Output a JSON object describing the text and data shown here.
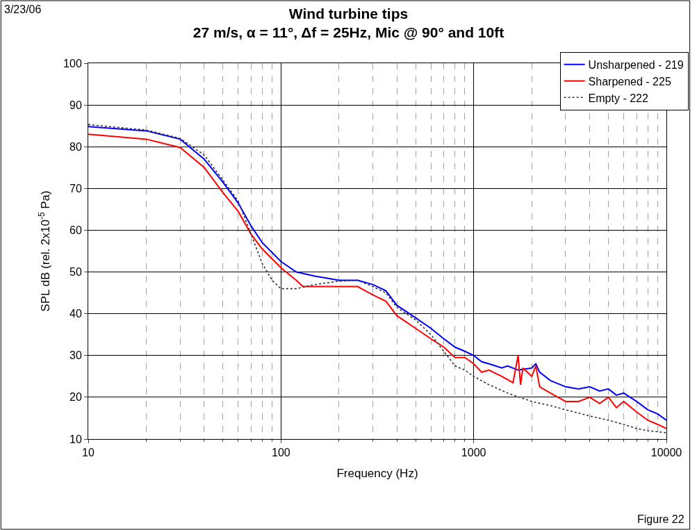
{
  "chart_data": {
    "type": "line",
    "title": "Wind turbine tips",
    "subtitle": "27 m/s, α = 11°, Δf = 25Hz, Mic @ 90° and 10ft",
    "xlabel": "Frequency (Hz)",
    "ylabel": "SPL dB (rel. 2x10$^{-5}$ Pa)",
    "log": "x",
    "xlim": [
      10,
      10000
    ],
    "xticks": [
      10,
      {
        "value": 20,
        "label": null
      },
      {
        "value": 30,
        "label": null
      },
      {
        "value": 40,
        "label": null
      },
      {
        "value": 50,
        "label": null
      },
      {
        "value": 60,
        "label": null
      },
      {
        "value": 70,
        "label": null
      },
      {
        "value": 80,
        "label": null
      },
      {
        "value": 90,
        "label": null
      },
      100,
      {
        "value": 200,
        "label": null
      },
      {
        "value": 300,
        "label": null
      },
      {
        "value": 400,
        "label": null
      },
      {
        "value": 500,
        "label": null
      },
      {
        "value": 600,
        "label": null
      },
      {
        "value": 700,
        "label": null
      },
      {
        "value": 800,
        "label": null
      },
      {
        "value": 900,
        "label": null
      },
      1000,
      {
        "value": 2000,
        "label": null
      },
      {
        "value": 3000,
        "label": null
      },
      {
        "value": 4000,
        "label": null
      },
      {
        "value": 5000,
        "label": null
      },
      {
        "value": 6000,
        "label": null
      },
      {
        "value": 7000,
        "label": null
      },
      {
        "value": 8000,
        "label": null
      },
      {
        "value": 9000,
        "label": null
      },
      10000
    ],
    "ylim": [
      10,
      100
    ],
    "yticks": [
      10,
      20,
      30,
      40,
      50,
      60,
      70,
      80,
      90,
      100
    ],
    "grid": true,
    "legend": "top right",
    "marker": "none",
    "annotations": [
      "3/23/06",
      "Figure 22"
    ],
    "series": [
      {
        "name": "Unsharpened - 219",
        "color": "#0000ff",
        "line_style": "solid",
        "x": [
          10,
          20,
          30,
          40,
          50,
          60,
          70,
          80,
          100,
          120,
          150,
          200,
          250,
          300,
          350,
          400,
          500,
          600,
          700,
          800,
          900,
          1000,
          1100,
          1200,
          1400,
          1500,
          1700,
          2000,
          2100,
          2200,
          2500,
          3000,
          3500,
          4000,
          4500,
          5000,
          5500,
          6000,
          7000,
          8000,
          9000,
          10000
        ],
        "values": [
          84.8,
          83.8,
          81.8,
          77,
          71.5,
          66.5,
          61,
          57,
          52.5,
          50,
          49,
          48,
          48,
          47,
          45.5,
          42,
          39,
          36.5,
          34,
          32,
          31,
          30,
          28.5,
          28,
          27,
          27.5,
          26.5,
          27,
          28,
          26,
          24,
          22.5,
          22,
          22.5,
          21.5,
          22,
          20.5,
          21,
          19,
          17,
          16,
          14.5
        ]
      },
      {
        "name": "Sharpened - 225",
        "color": "#ff0000",
        "line_style": "solid",
        "x": [
          10,
          20,
          30,
          40,
          50,
          60,
          70,
          80,
          100,
          120,
          130,
          200,
          250,
          300,
          350,
          400,
          500,
          600,
          700,
          800,
          900,
          1000,
          1100,
          1200,
          1400,
          1600,
          1700,
          1750,
          1800,
          2000,
          2100,
          2200,
          2500,
          3000,
          3500,
          4000,
          4500,
          5000,
          5500,
          6000,
          7000,
          8000,
          9000,
          10000
        ],
        "values": [
          83,
          81.8,
          79.8,
          75,
          69,
          64.5,
          59,
          55.5,
          51,
          48,
          46.5,
          46.5,
          46.5,
          44.5,
          43,
          39.5,
          36.5,
          34,
          32,
          29.5,
          29.5,
          28,
          26,
          26.5,
          25,
          23.5,
          30,
          23,
          27,
          25,
          27.5,
          22.5,
          21,
          19,
          19,
          20,
          18.5,
          20,
          17.5,
          19,
          16.5,
          14.5,
          13.5,
          12.5
        ]
      },
      {
        "name": "Empty - 222",
        "color": "#333333",
        "line_style": "dotted",
        "x": [
          10,
          20,
          30,
          40,
          50,
          60,
          70,
          80,
          90,
          100,
          120,
          150,
          200,
          250,
          300,
          350,
          400,
          500,
          600,
          700,
          800,
          900,
          1000,
          1200,
          1500,
          2000,
          2500,
          3000,
          4000,
          5000,
          6000,
          7000,
          8000,
          10000
        ],
        "values": [
          85.3,
          84,
          82,
          78,
          72,
          67,
          59,
          52,
          48,
          46,
          46,
          47,
          47.8,
          48,
          46.5,
          45,
          41.5,
          38.5,
          35,
          31,
          27.5,
          26.5,
          25,
          23,
          21,
          19,
          18,
          17,
          15.5,
          14.5,
          13.5,
          12.5,
          12,
          11.5
        ]
      }
    ]
  }
}
